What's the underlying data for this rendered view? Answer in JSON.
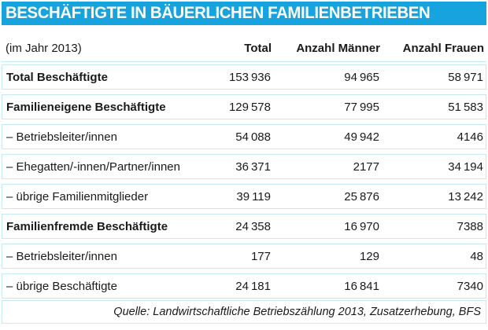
{
  "title": "BESCHÄFTIGTE IN BÄUERLICHEN FAMILIENBETRIEBEN",
  "colors": {
    "accent": "#16A3DE",
    "row_border": "#C6E7F6",
    "title_text": "#FFFFFF",
    "body_text": "#1A1A1A"
  },
  "table": {
    "header": {
      "period_label": "(im Jahr 2013)",
      "columns": [
        "Total",
        "Anzahl Männer",
        "Anzahl Frauen"
      ]
    },
    "rows": [
      {
        "label": "Total Beschäftigte",
        "bold": true,
        "total": "153 936",
        "maenner": "94 965",
        "frauen": "58 971"
      },
      {
        "label": "Familieneigene Beschäftigte",
        "bold": true,
        "total": "129 578",
        "maenner": "77 995",
        "frauen": "51 583"
      },
      {
        "label": "– Betriebsleiter/innen",
        "bold": false,
        "total": "54 088",
        "maenner": "49 942",
        "frauen": "4146"
      },
      {
        "label": "– Ehegatten/-innen/Partner/innen",
        "bold": false,
        "total": "36 371",
        "maenner": "2177",
        "frauen": "34 194"
      },
      {
        "label": "– übrige Familienmitglieder",
        "bold": false,
        "total": "39 119",
        "maenner": "25 876",
        "frauen": "13 242"
      },
      {
        "label": "Familienfremde Beschäftigte",
        "bold": true,
        "total": "24 358",
        "maenner": "16 970",
        "frauen": "7388"
      },
      {
        "label": "– Betriebsleiter/innen",
        "bold": false,
        "total": "177",
        "maenner": "129",
        "frauen": "48"
      },
      {
        "label": "– übrige Beschäftigte",
        "bold": false,
        "total": "24 181",
        "maenner": "16 841",
        "frauen": "7340"
      }
    ]
  },
  "source": "Quelle: Landwirtschaftliche Betriebszählung 2013, Zusatzerhebung, BFS",
  "chart_data": {
    "type": "table",
    "title": "BESCHÄFTIGTE IN BÄUERLICHEN FAMILIENBETRIEBEN",
    "subtitle": "(im Jahr 2013)",
    "columns": [
      "Total",
      "Anzahl Männer",
      "Anzahl Frauen"
    ],
    "rows": [
      {
        "category": "Total Beschäftigte",
        "values": [
          153936,
          94965,
          58971
        ]
      },
      {
        "category": "Familieneigene Beschäftigte",
        "values": [
          129578,
          77995,
          51583
        ]
      },
      {
        "category": "– Betriebsleiter/innen",
        "values": [
          54088,
          49942,
          4146
        ]
      },
      {
        "category": "– Ehegatten/-innen/Partner/innen",
        "values": [
          36371,
          2177,
          34194
        ]
      },
      {
        "category": "– übrige Familienmitglieder",
        "values": [
          39119,
          25876,
          13242
        ]
      },
      {
        "category": "Familienfremde Beschäftigte",
        "values": [
          24358,
          16970,
          7388
        ]
      },
      {
        "category": "– Betriebsleiter/innen",
        "values": [
          177,
          129,
          48
        ]
      },
      {
        "category": "– übrige Beschäftigte",
        "values": [
          24181,
          16841,
          7340
        ]
      }
    ],
    "source": "Quelle: Landwirtschaftliche Betriebszählung 2013, Zusatzerhebung, BFS"
  }
}
